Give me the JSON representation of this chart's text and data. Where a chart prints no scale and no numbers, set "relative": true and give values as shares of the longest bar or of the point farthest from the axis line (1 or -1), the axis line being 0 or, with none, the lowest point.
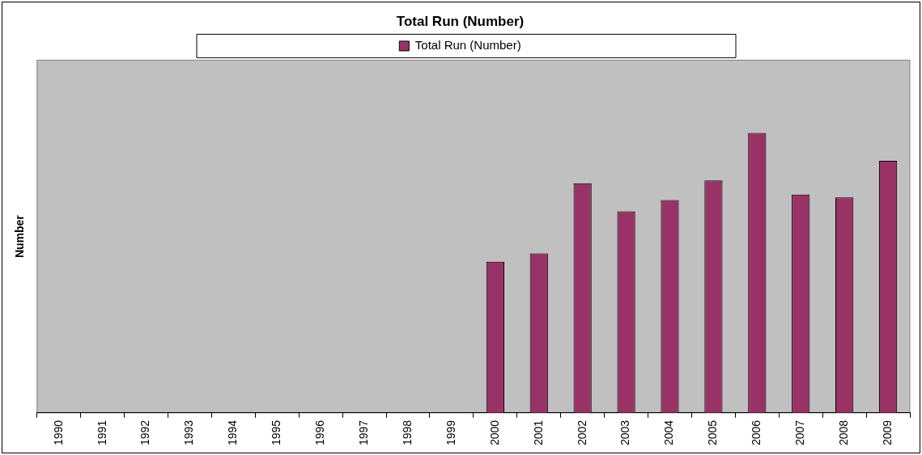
{
  "chart_data": {
    "type": "bar",
    "title": "Total Run (Number)",
    "ylabel": "Number",
    "relative": true,
    "categories": [
      "1990",
      "1991",
      "1992",
      "1993",
      "1994",
      "1995",
      "1996",
      "1997",
      "1998",
      "1999",
      "2000",
      "2001",
      "2002",
      "2003",
      "2004",
      "2005",
      "2006",
      "2007",
      "2008",
      "2009"
    ],
    "series": [
      {
        "name": "Total Run (Number)",
        "color": "#993366",
        "values": [
          null,
          null,
          null,
          null,
          null,
          null,
          null,
          null,
          null,
          null,
          0.54,
          0.57,
          0.82,
          0.72,
          0.76,
          0.83,
          1,
          0.78,
          0.77,
          0.9
        ]
      }
    ],
    "legend": "top",
    "grid": false
  }
}
